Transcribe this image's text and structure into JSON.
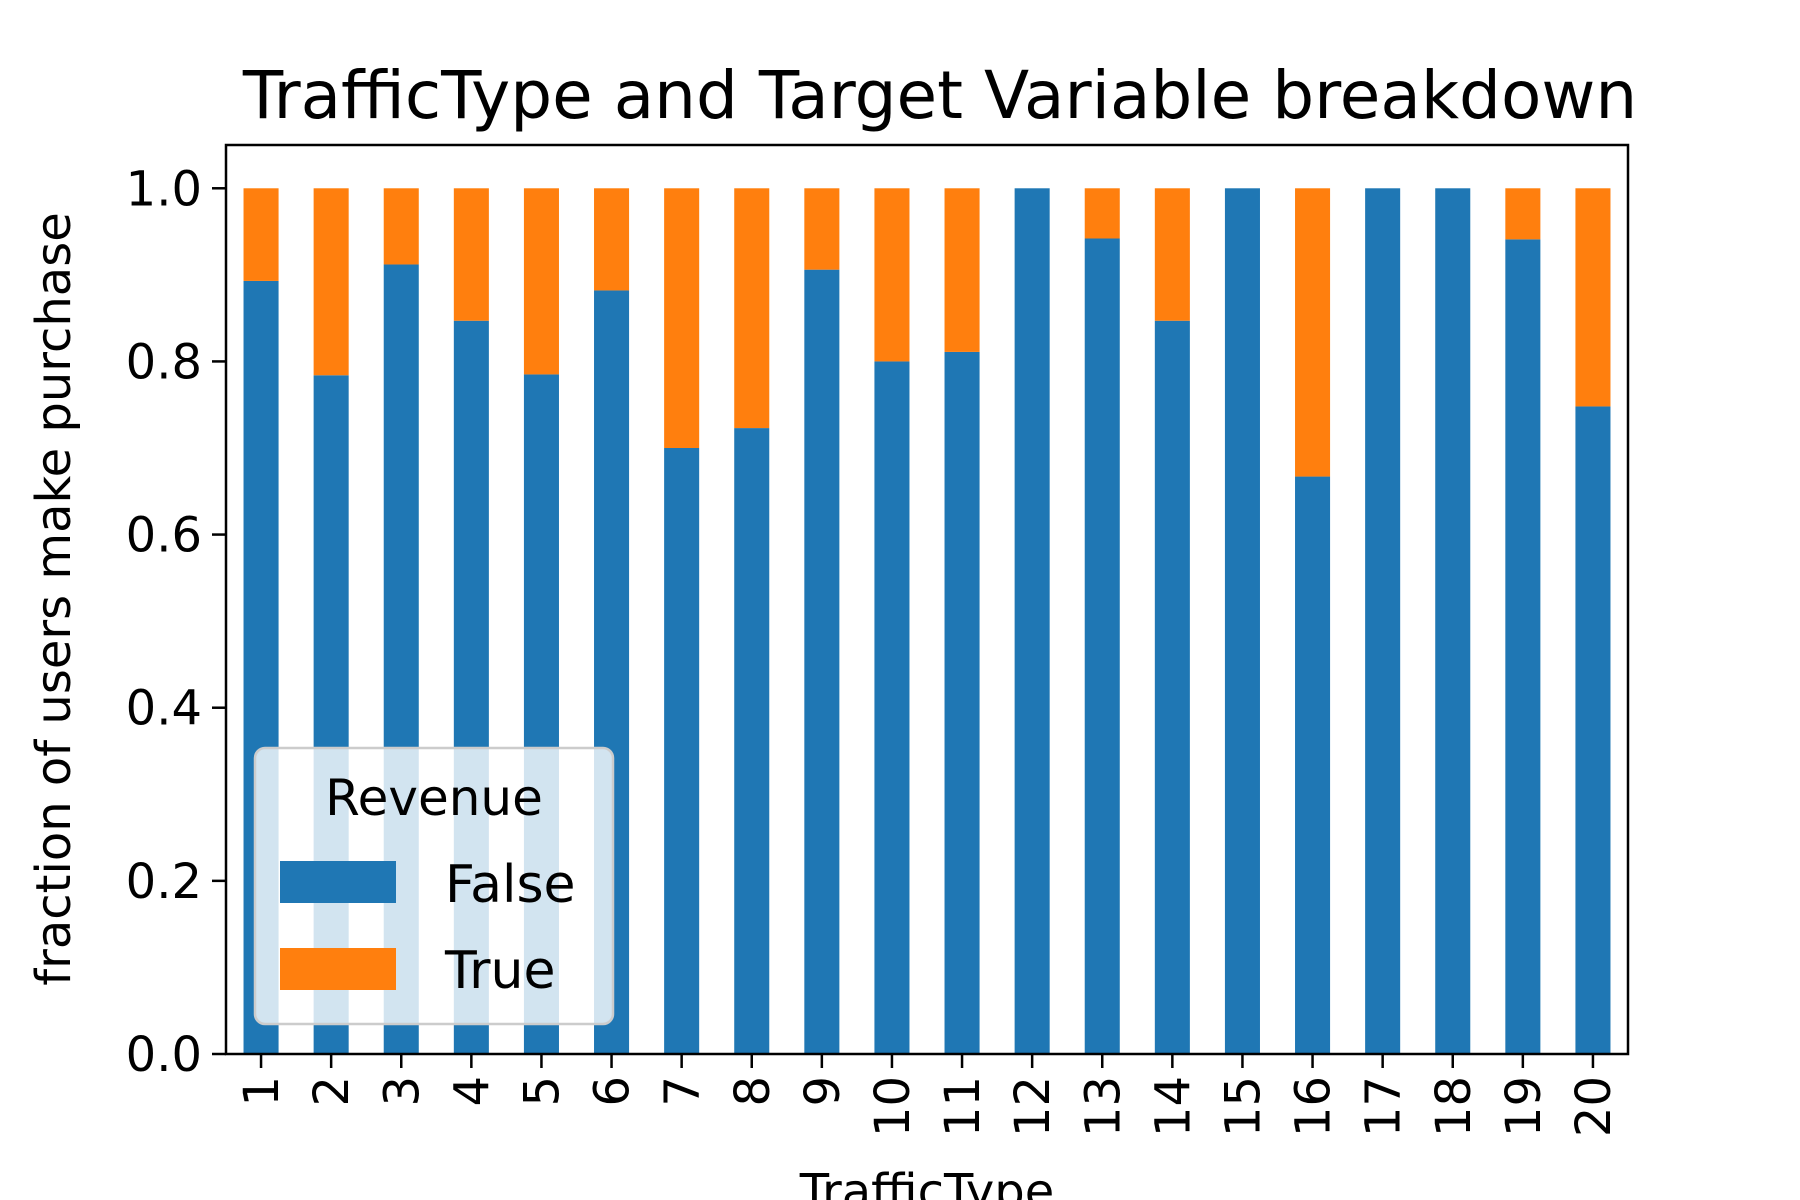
{
  "chart_data": {
    "type": "bar",
    "stacked": true,
    "title": "TrafficType and Target Variable breakdown",
    "xlabel": "TrafficType",
    "ylabel": "fraction of users make purchase",
    "categories": [
      "1",
      "2",
      "3",
      "4",
      "5",
      "6",
      "7",
      "8",
      "9",
      "10",
      "11",
      "12",
      "13",
      "14",
      "15",
      "16",
      "17",
      "18",
      "19",
      "20"
    ],
    "ylim": [
      0,
      1.05
    ],
    "yticks": [
      "0.0",
      "0.2",
      "0.4",
      "0.6",
      "0.8",
      "1.0"
    ],
    "grid": false,
    "legend": {
      "title": "Revenue",
      "position": "lower-left"
    },
    "series": [
      {
        "name": "False",
        "color": "#1f77b4",
        "values": [
          0.893,
          0.784,
          0.912,
          0.847,
          0.785,
          0.882,
          0.7,
          0.723,
          0.906,
          0.8,
          0.811,
          1.0,
          0.942,
          0.847,
          1.0,
          0.667,
          1.0,
          1.0,
          0.941,
          0.748
        ]
      },
      {
        "name": "True",
        "color": "#ff7f0e",
        "values": [
          0.107,
          0.216,
          0.088,
          0.153,
          0.215,
          0.118,
          0.3,
          0.277,
          0.094,
          0.2,
          0.189,
          0.0,
          0.058,
          0.153,
          0.0,
          0.333,
          0.0,
          0.0,
          0.059,
          0.252
        ]
      }
    ]
  }
}
